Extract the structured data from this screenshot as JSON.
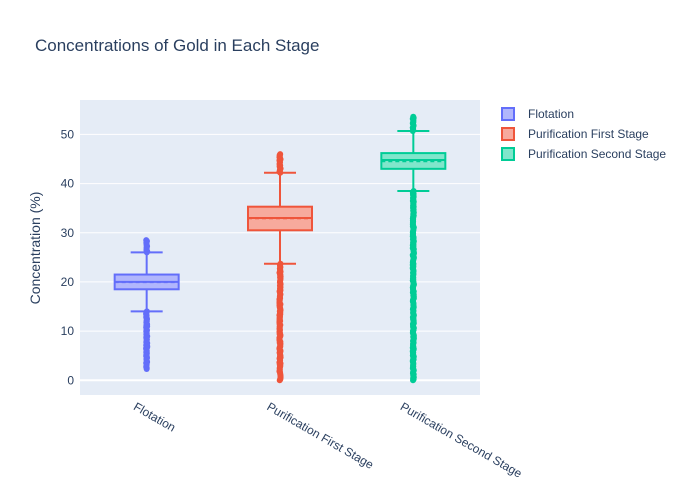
{
  "chart_data": {
    "type": "box",
    "title": "Concentrations of Gold in Each Stage",
    "xlabel": "",
    "ylabel": "Concentration (%)",
    "ylim": [
      -3,
      57
    ],
    "yticks": [
      0,
      10,
      20,
      30,
      40,
      50
    ],
    "grid": true,
    "legend_position": "top-right",
    "series": [
      {
        "name": "Flotation",
        "category": "Flotation",
        "color": "#636efa",
        "fill": "#b1b6fc",
        "lower_fence": 14.0,
        "q1": 18.5,
        "median": 20.0,
        "q3": 21.5,
        "upper_fence": 26.0,
        "mean": 19.9,
        "outliers_low_range": [
          2.3,
          14.0
        ],
        "outliers_high_range": [
          26.0,
          28.5
        ]
      },
      {
        "name": "Purification First Stage",
        "category": "Purification First Stage",
        "color": "#ef553b",
        "fill": "#f7aa9d",
        "lower_fence": 23.7,
        "q1": 30.5,
        "median": 33.0,
        "q3": 35.3,
        "upper_fence": 42.2,
        "mean": 32.9,
        "outliers_low_range": [
          0,
          23.7
        ],
        "outliers_high_range": [
          42.2,
          46.0
        ]
      },
      {
        "name": "Purification Second Stage",
        "category": "Purification Second Stage",
        "color": "#00cc96",
        "fill": "#80e6cb",
        "lower_fence": 38.5,
        "q1": 43.0,
        "median": 44.8,
        "q3": 46.2,
        "upper_fence": 50.7,
        "mean": 44.5,
        "outliers_low_range": [
          0,
          38.5
        ],
        "outliers_high_range": [
          50.7,
          53.6
        ]
      }
    ]
  }
}
